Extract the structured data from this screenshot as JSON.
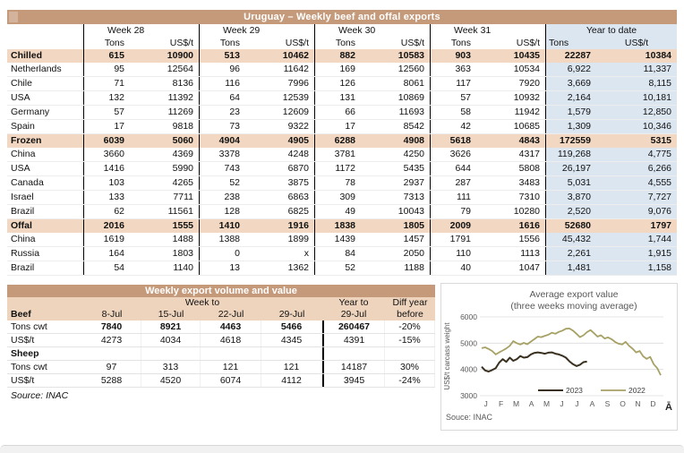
{
  "theme": {
    "header_bar": "#c59a7b",
    "band_row": "#f2d8c2",
    "subheader": "#eed4bd",
    "ytd_background": "#dce6f1",
    "line_2023": "#39301f",
    "line_2022": "#a7a165"
  },
  "main_table": {
    "title": "Uruguay – Weekly beef and offal exports",
    "week_headers": [
      "Week 28",
      "Week 29",
      "Week 30",
      "Week 31"
    ],
    "ytd_header": "Year to date",
    "tons_label": "Tons",
    "usdt_label": "US$/t",
    "rows": [
      {
        "label": "Chilled",
        "band": true,
        "values": [
          "615",
          "10900",
          "513",
          "10462",
          "882",
          "10583",
          "903",
          "10435",
          "22287",
          "10384"
        ]
      },
      {
        "label": "Netherlands",
        "band": false,
        "values": [
          "95",
          "12564",
          "96",
          "11642",
          "169",
          "12560",
          "363",
          "10534",
          "6,922",
          "11,337"
        ]
      },
      {
        "label": "Chile",
        "band": false,
        "values": [
          "71",
          "8136",
          "116",
          "7996",
          "126",
          "8061",
          "117",
          "7920",
          "3,669",
          "8,115"
        ]
      },
      {
        "label": "USA",
        "band": false,
        "values": [
          "132",
          "11392",
          "64",
          "12539",
          "131",
          "10869",
          "57",
          "10932",
          "2,164",
          "10,181"
        ]
      },
      {
        "label": "Germany",
        "band": false,
        "values": [
          "57",
          "11269",
          "23",
          "12609",
          "66",
          "11693",
          "58",
          "11942",
          "1,579",
          "12,850"
        ]
      },
      {
        "label": "Spain",
        "band": false,
        "values": [
          "17",
          "9818",
          "73",
          "9322",
          "17",
          "8542",
          "42",
          "10685",
          "1,309",
          "10,346"
        ]
      },
      {
        "label": "Frozen",
        "band": true,
        "values": [
          "6039",
          "5060",
          "4904",
          "4905",
          "6288",
          "4908",
          "5618",
          "4843",
          "172559",
          "5315"
        ]
      },
      {
        "label": "China",
        "band": false,
        "values": [
          "3660",
          "4369",
          "3378",
          "4248",
          "3781",
          "4250",
          "3626",
          "4317",
          "119,268",
          "4,775"
        ]
      },
      {
        "label": "USA",
        "band": false,
        "values": [
          "1416",
          "5990",
          "743",
          "6870",
          "1172",
          "5435",
          "644",
          "5808",
          "26,197",
          "6,266"
        ]
      },
      {
        "label": "Canada",
        "band": false,
        "values": [
          "103",
          "4265",
          "52",
          "3875",
          "78",
          "2937",
          "287",
          "3483",
          "5,031",
          "4,555"
        ]
      },
      {
        "label": "Israel",
        "band": false,
        "values": [
          "133",
          "7711",
          "238",
          "6863",
          "309",
          "7313",
          "111",
          "7310",
          "3,870",
          "7,727"
        ]
      },
      {
        "label": "Brazil",
        "band": false,
        "values": [
          "62",
          "11561",
          "128",
          "6825",
          "49",
          "10043",
          "79",
          "10280",
          "2,520",
          "9,076"
        ]
      },
      {
        "label": "Offal",
        "band": true,
        "values": [
          "2016",
          "1555",
          "1410",
          "1916",
          "1838",
          "1805",
          "2009",
          "1616",
          "52680",
          "1797"
        ]
      },
      {
        "label": "China",
        "band": false,
        "values": [
          "1619",
          "1488",
          "1388",
          "1899",
          "1439",
          "1457",
          "1791",
          "1556",
          "45,432",
          "1,744"
        ]
      },
      {
        "label": "Russia",
        "band": false,
        "values": [
          "164",
          "1803",
          "0",
          "x",
          "84",
          "2050",
          "110",
          "1113",
          "2,261",
          "1,915"
        ]
      },
      {
        "label": "Brazil",
        "band": false,
        "values": [
          "54",
          "1140",
          "13",
          "1362",
          "52",
          "1188",
          "40",
          "1047",
          "1,481",
          "1,158"
        ]
      }
    ]
  },
  "weekly_table": {
    "title": "Weekly export volume and value",
    "week_to_label": "Week to",
    "year_to_label": "Year to",
    "diff_label_line1": "Diff year",
    "diff_label_line2": "before",
    "beef_label": "Beef",
    "sheep_label": "Sheep",
    "dates": [
      "8-Jul",
      "15-Jul",
      "22-Jul",
      "29-Jul",
      "29-Jul"
    ],
    "beef_rows": [
      {
        "label": "Tons cwt",
        "bold": true,
        "values": [
          "7840",
          "8921",
          "4463",
          "5466",
          "260467"
        ],
        "diff": "-20%"
      },
      {
        "label": "US$/t",
        "bold": false,
        "values": [
          "4273",
          "4034",
          "4618",
          "4345",
          "4391"
        ],
        "diff": "-15%"
      }
    ],
    "sheep_rows": [
      {
        "label": "Tons cwt",
        "bold": false,
        "values": [
          "97",
          "313",
          "121",
          "121",
          "14187"
        ],
        "diff": "30%"
      },
      {
        "label": "US$/t",
        "bold": false,
        "values": [
          "5288",
          "4520",
          "6074",
          "4112",
          "3945"
        ],
        "diff": "-24%"
      }
    ],
    "source": "Source: INAC"
  },
  "chart": {
    "source": "Souce: INAC",
    "axis_suffix": "Ā"
  },
  "chart_data": {
    "type": "line",
    "title": "Average export value",
    "subtitle": "(three weeks moving average)",
    "ylabel": "US$/t carcass weight",
    "xlabel": "",
    "ylim": [
      3000,
      6000
    ],
    "yticks": [
      3000,
      4000,
      5000,
      6000
    ],
    "grid": true,
    "legend_position": "bottom-inside",
    "x_tick_labels": [
      "J",
      "F",
      "M",
      "A",
      "M",
      "J",
      "J",
      "A",
      "S",
      "O",
      "N",
      "D"
    ],
    "x_weeks_total": 52,
    "series": [
      {
        "name": "2023",
        "color": "#39301f",
        "start_week": 1,
        "values": [
          4100,
          3960,
          3920,
          3980,
          4050,
          4260,
          4390,
          4290,
          4450,
          4330,
          4390,
          4510,
          4450,
          4470,
          4570,
          4630,
          4650,
          4630,
          4600,
          4640,
          4650,
          4600,
          4570,
          4520,
          4450,
          4310,
          4200,
          4130,
          4180,
          4280,
          4300
        ]
      },
      {
        "name": "2022",
        "color": "#a7a165",
        "start_week": 1,
        "values": [
          4810,
          4840,
          4780,
          4700,
          4570,
          4650,
          4720,
          4800,
          4900,
          5080,
          5000,
          4950,
          5010,
          4960,
          5060,
          5150,
          5250,
          5230,
          5280,
          5320,
          5400,
          5360,
          5430,
          5480,
          5550,
          5560,
          5480,
          5360,
          5230,
          5300,
          5420,
          5500,
          5380,
          5250,
          5300,
          5180,
          5220,
          5150,
          5050,
          4980,
          4950,
          5050,
          4900,
          4790,
          4650,
          4700,
          4500,
          4400,
          4480,
          4200,
          4050,
          3780
        ]
      }
    ]
  }
}
